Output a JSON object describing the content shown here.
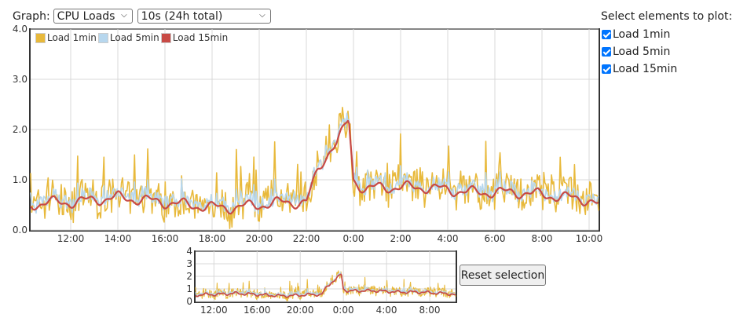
{
  "controls": {
    "graph_label": "Graph:",
    "graph_value": "CPU Loads",
    "range_value": "10s (24h total)"
  },
  "select_panel": {
    "title": "Select elements to plot:",
    "items": [
      {
        "label": "Load 1min",
        "checked": true
      },
      {
        "label": "Load 5min",
        "checked": true
      },
      {
        "label": "Load 15min",
        "checked": true
      }
    ]
  },
  "reset_button": "Reset selection",
  "chart_data": [
    {
      "type": "line",
      "x_ticks": [
        "12:00",
        "14:00",
        "16:00",
        "18:00",
        "20:00",
        "22:00",
        "0:00",
        "2:00",
        "4:00",
        "6:00",
        "8:00",
        "10:00"
      ],
      "y_ticks": [
        "0.0",
        "1.0",
        "2.0",
        "3.0",
        "4.0"
      ],
      "ylim": [
        0,
        4
      ],
      "xlim_hours": [
        10.3,
        34.4
      ],
      "grid": true,
      "legend": "top-left",
      "series": [
        {
          "name": "Load 1min",
          "color": "#e8b93b"
        },
        {
          "name": "Load 5min",
          "color": "#b7d7ee"
        },
        {
          "name": "Load 15min",
          "color": "#c84a45"
        }
      ],
      "profile": {
        "x": [
          10.3,
          11.0,
          12.0,
          13.0,
          14.0,
          15.0,
          16.0,
          17.0,
          18.0,
          19.0,
          20.0,
          21.0,
          22.0,
          22.5,
          23.0,
          23.3,
          23.6,
          23.8,
          24.0,
          24.5,
          25.0,
          26.0,
          27.0,
          28.0,
          29.0,
          30.0,
          31.0,
          32.0,
          33.0,
          34.0,
          34.4
        ],
        "load15": [
          0.5,
          0.55,
          0.55,
          0.6,
          0.65,
          0.6,
          0.55,
          0.5,
          0.45,
          0.45,
          0.5,
          0.55,
          0.55,
          1.2,
          1.6,
          1.75,
          2.0,
          2.2,
          1.0,
          0.8,
          0.85,
          0.85,
          0.85,
          0.8,
          0.75,
          0.75,
          0.75,
          0.7,
          0.65,
          0.6,
          0.5
        ]
      }
    },
    {
      "type": "line",
      "x_ticks": [
        "12:00",
        "16:00",
        "20:00",
        "0:00",
        "4:00",
        "8:00"
      ],
      "y_ticks": [
        "0",
        "1",
        "2",
        "3",
        "4"
      ],
      "ylim": [
        0,
        4
      ],
      "grid": true
    }
  ]
}
